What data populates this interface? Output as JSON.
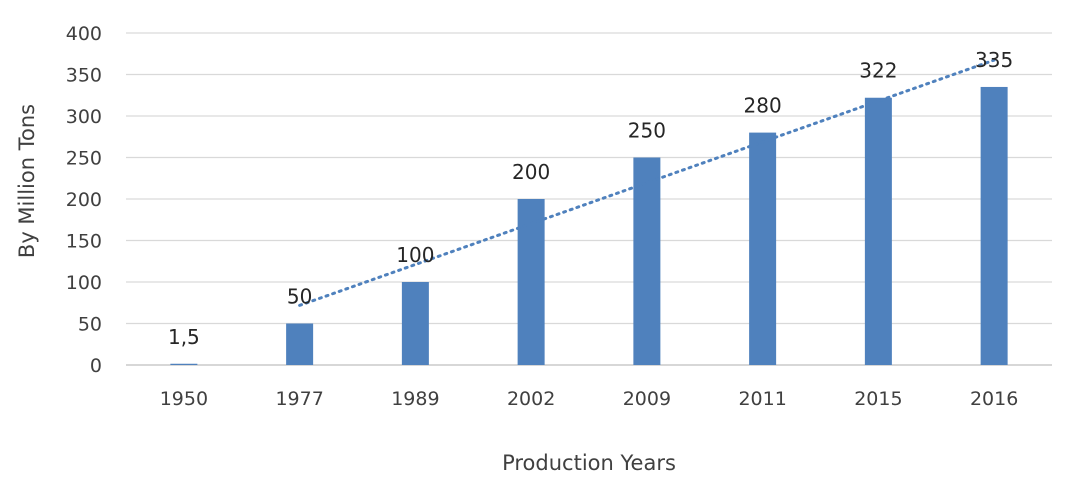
{
  "chart_data": {
    "type": "bar",
    "categories": [
      "1950",
      "1977",
      "1989",
      "2002",
      "2009",
      "2011",
      "2015",
      "2016"
    ],
    "values": [
      1.5,
      50,
      100,
      200,
      250,
      280,
      322,
      335
    ],
    "data_labels": [
      "1,5",
      "50",
      "100",
      "200",
      "250",
      "280",
      "322",
      "335"
    ],
    "title": "",
    "xlabel": "Production Years",
    "ylabel": "By Million Tons",
    "ylim": [
      0,
      400
    ],
    "yticks": [
      0,
      50,
      100,
      150,
      200,
      250,
      300,
      350,
      400
    ],
    "grid": true,
    "trendline": {
      "type": "linear",
      "style": "dotted",
      "from_category": "1977"
    },
    "colors": {
      "bar": "#4f81bd",
      "trend": "#4f81bd",
      "grid": "#d9d9d9",
      "text": "#404040"
    }
  }
}
